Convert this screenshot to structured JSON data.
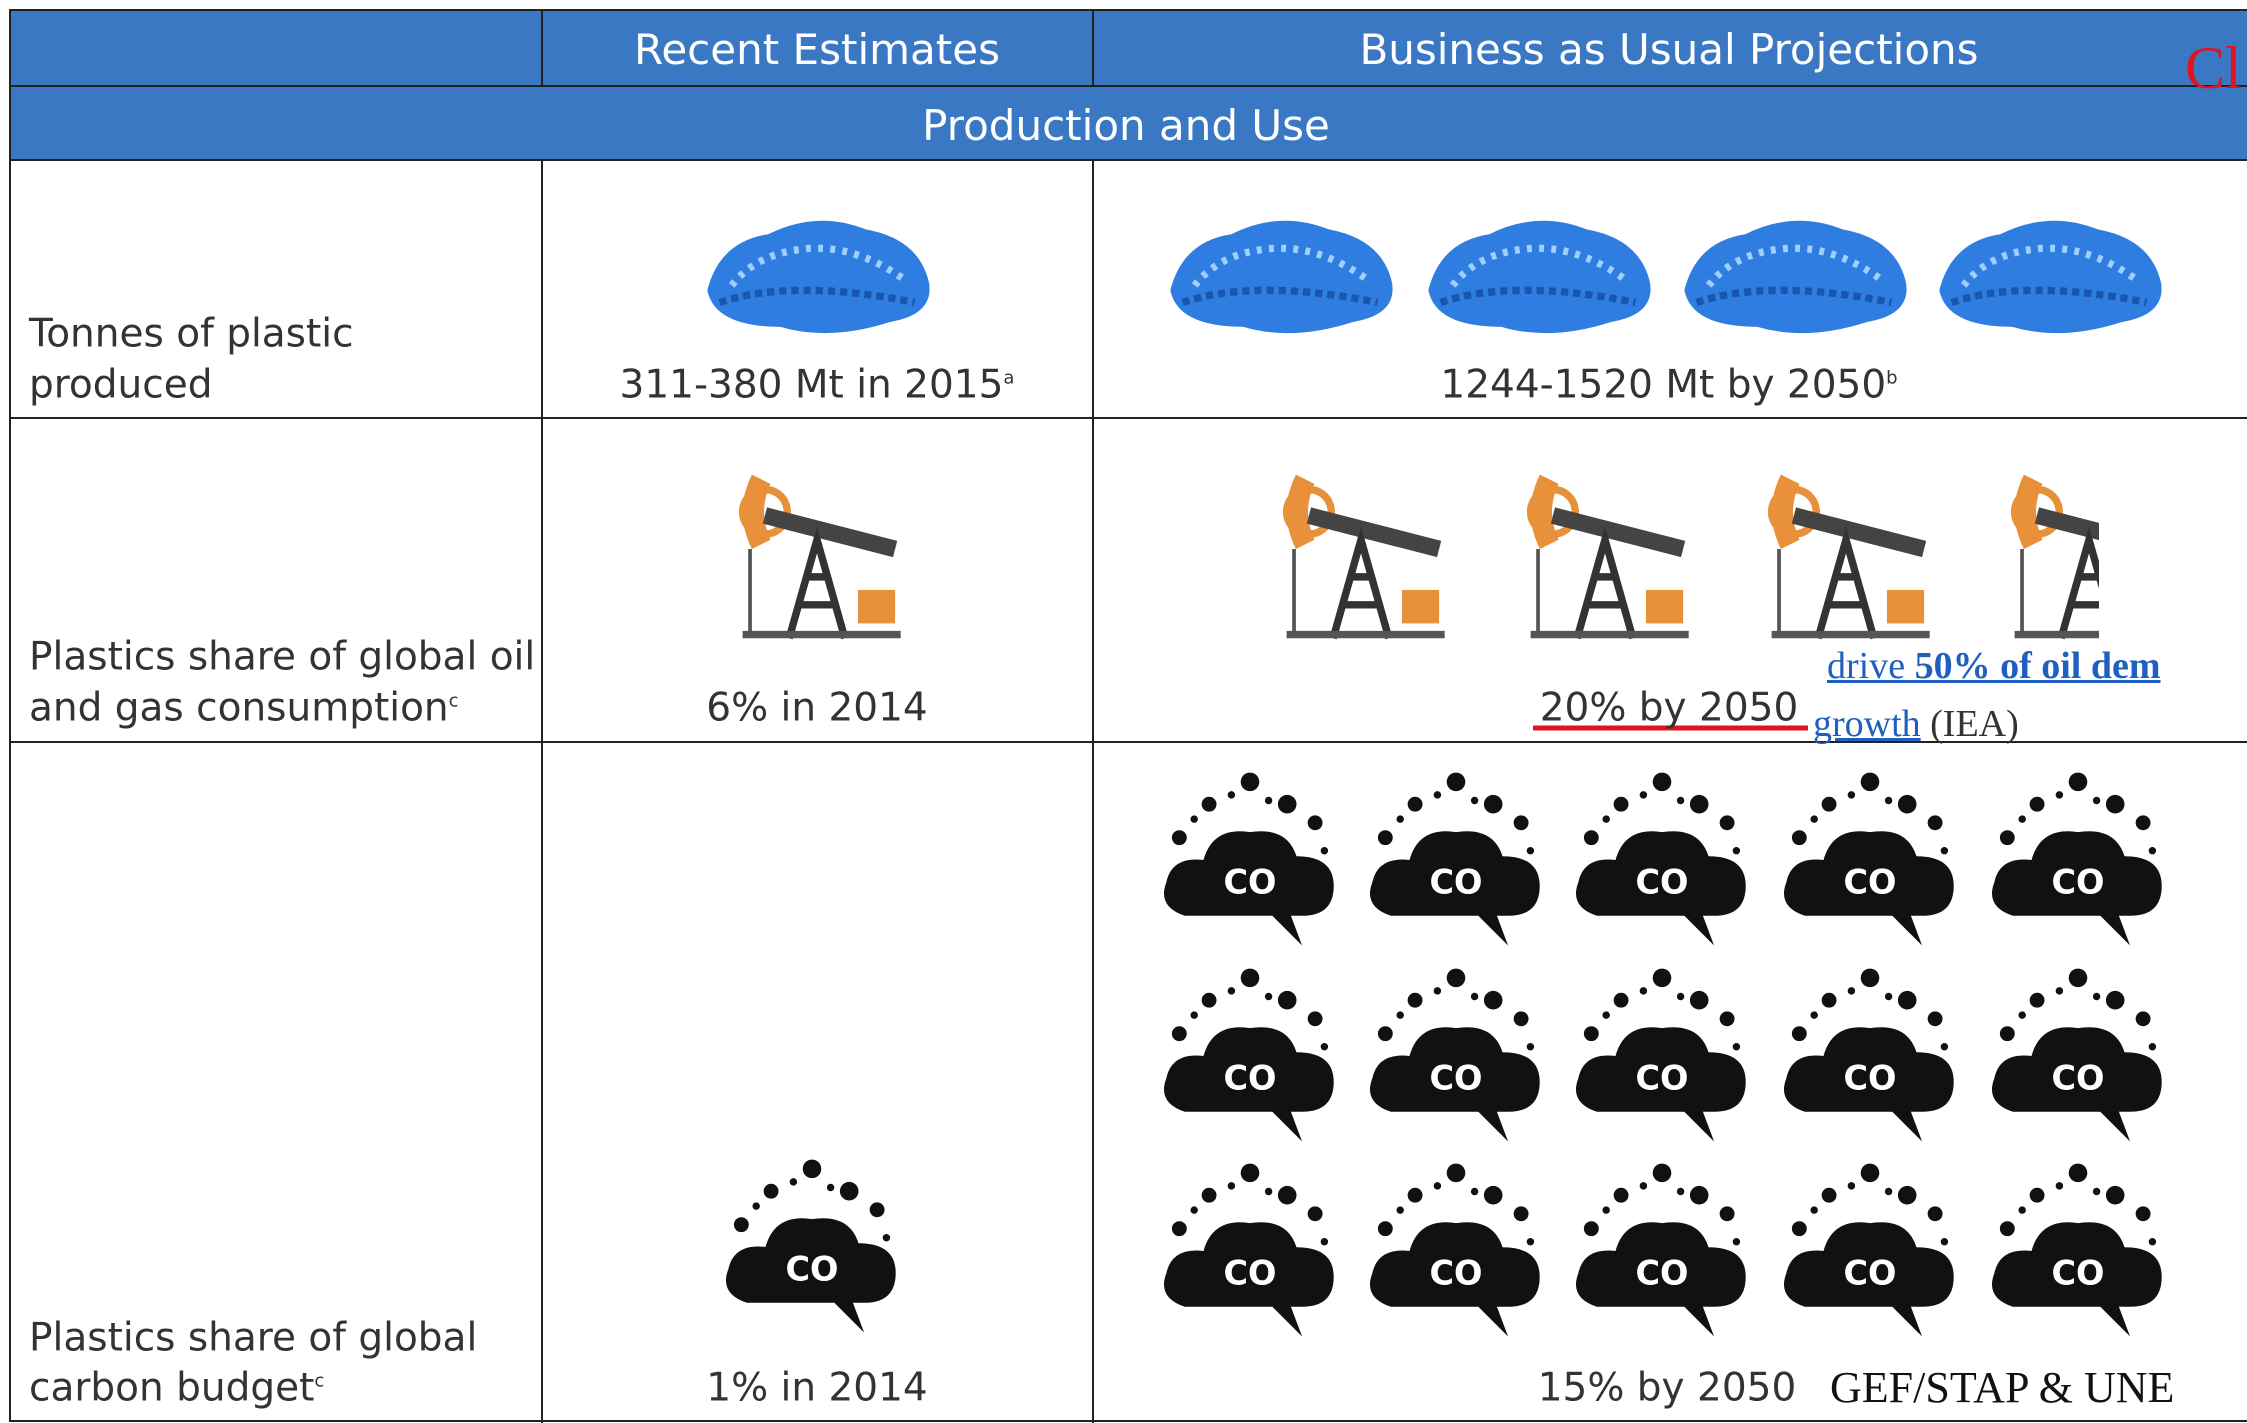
{
  "header": {
    "recent": "Recent Estimates",
    "bau": "Business as Usual Projections",
    "overlay": "Cl"
  },
  "section": "Production and Use",
  "icon_label": "CO",
  "rows": [
    {
      "label": [
        "Tonnes of plastic",
        "produced"
      ],
      "recent": "311-380 Mt in 2015",
      "recent_note": "a",
      "bau": "1244-1520 Mt by 2050",
      "bau_note": "b"
    },
    {
      "label": [
        "Plastics share of global oil",
        "and gas consumption"
      ],
      "label_note": "c",
      "recent": "6% in 2014",
      "bau": "20% by 2050"
    },
    {
      "label": [
        "Plastics share of global",
        "carbon budget"
      ],
      "label_note": "c",
      "recent": "1% in 2014",
      "bau": "15% by 2050"
    }
  ],
  "annotations": {
    "link_prefix": "drive",
    "link_bold": "50% of oil dem",
    "link2": "growth",
    "source": "(IEA)",
    "credit": "GEF/STAP & UNE"
  }
}
